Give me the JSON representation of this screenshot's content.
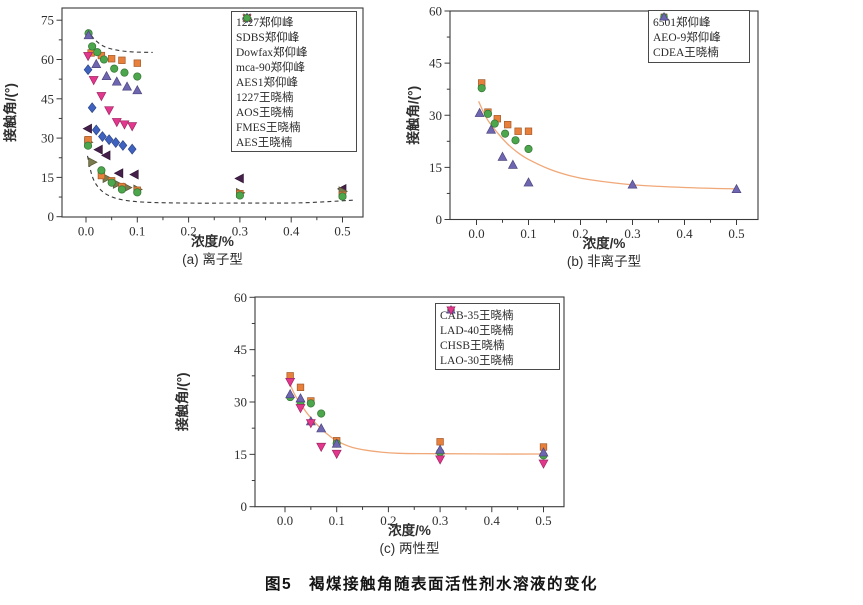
{
  "figure": {
    "caption": "图5　褐煤接触角随表面活性剂水溶液的变化"
  },
  "palette": {
    "orange": "#E8803C",
    "green": "#4CA64C",
    "purple": "#6F66B2",
    "magenta": "#E3368D",
    "blue": "#3F62C0",
    "dark_purple": "#45204A",
    "olive": "#7A7A4C",
    "fit_curve": "#F0A878",
    "dashed_guide": "#3A3A3A",
    "axis": "#3A3A3A",
    "text": "#2F2F2F"
  },
  "chart_data": [
    {
      "id": "a",
      "type": "scatter",
      "subtitle": "(a) 离子型",
      "xlabel": "浓度/%",
      "ylabel": "接触角/(°)",
      "xlim": [
        0,
        0.5
      ],
      "ylim": [
        0,
        75
      ],
      "xticks": [
        [
          0,
          "0.0"
        ],
        [
          0.1,
          "0.1"
        ],
        [
          0.2,
          "0.2"
        ],
        [
          0.3,
          "0.3"
        ],
        [
          0.4,
          "0.4"
        ],
        [
          0.5,
          "0.5"
        ]
      ],
      "yticks": [
        0,
        15,
        30,
        45,
        60,
        75
      ],
      "grid": false,
      "legend_position": "top-right",
      "series": [
        {
          "name": "1227郑仰峰",
          "marker": "square",
          "color": "orange",
          "points": [
            [
              0.01,
              62.5
            ],
            [
              0.03,
              61.5
            ],
            [
              0.05,
              60.3
            ],
            [
              0.07,
              59.7
            ],
            [
              0.1,
              58.6
            ]
          ]
        },
        {
          "name": "SDBS郑仰峰",
          "marker": "circle",
          "color": "green",
          "points": [
            [
              0.005,
              70
            ],
            [
              0.012,
              65
            ],
            [
              0.022,
              62.8
            ],
            [
              0.035,
              60
            ],
            [
              0.055,
              56.5
            ],
            [
              0.075,
              55
            ],
            [
              0.1,
              53.5
            ]
          ]
        },
        {
          "name": "Dowfax郑仰峰",
          "marker": "triangle-up",
          "color": "purple",
          "points": [
            [
              0.005,
              69.2
            ],
            [
              0.02,
              58.2
            ],
            [
              0.04,
              53.6
            ],
            [
              0.06,
              51.5
            ],
            [
              0.08,
              49.6
            ],
            [
              0.1,
              48.2
            ]
          ]
        },
        {
          "name": "mca-90郑仰峰",
          "marker": "triangle-down",
          "color": "magenta",
          "points": [
            [
              0.004,
              61.4
            ],
            [
              0.015,
              52.2
            ],
            [
              0.03,
              46.1
            ],
            [
              0.045,
              40.7
            ],
            [
              0.06,
              36.2
            ],
            [
              0.075,
              35.3
            ],
            [
              0.09,
              34.6
            ]
          ]
        },
        {
          "name": "AES1郑仰峰",
          "marker": "diamond",
          "color": "blue",
          "points": [
            [
              0.004,
              56.1
            ],
            [
              0.012,
              41.6
            ],
            [
              0.02,
              33.1
            ],
            [
              0.032,
              30.6
            ],
            [
              0.045,
              29.4
            ],
            [
              0.058,
              28.3
            ],
            [
              0.072,
              27.2
            ],
            [
              0.09,
              25.8
            ]
          ]
        },
        {
          "name": "1227王晓楠",
          "marker": "triangle-left",
          "color": "dark_purple",
          "points": [
            [
              0.004,
              33.6
            ],
            [
              0.025,
              25.6
            ],
            [
              0.04,
              23.4
            ],
            [
              0.065,
              16.6
            ],
            [
              0.095,
              16.1
            ],
            [
              0.3,
              14.6
            ],
            [
              0.5,
              10.6
            ]
          ]
        },
        {
          "name": "AOS王晓楠",
          "marker": "triangle-right",
          "color": "olive",
          "points": [
            [
              0.004,
              28.4
            ],
            [
              0.012,
              20.8
            ],
            [
              0.04,
              14.7
            ],
            [
              0.06,
              12.5
            ],
            [
              0.08,
              11.1
            ],
            [
              0.1,
              10.4
            ],
            [
              0.3,
              9.1
            ],
            [
              0.5,
              9.7
            ]
          ]
        },
        {
          "name": "FMES王晓楠",
          "marker": "square",
          "color": "orange",
          "points": [
            [
              0.004,
              29.4
            ],
            [
              0.03,
              15.7
            ],
            [
              0.05,
              13.7
            ],
            [
              0.07,
              11.5
            ],
            [
              0.1,
              10.1
            ],
            [
              0.3,
              8.8
            ],
            [
              0.5,
              8.2
            ]
          ]
        },
        {
          "name": "AES王晓楠",
          "marker": "circle",
          "color": "green",
          "points": [
            [
              0.004,
              27.1
            ],
            [
              0.03,
              17.7
            ],
            [
              0.05,
              13
            ],
            [
              0.07,
              10.4
            ],
            [
              0.1,
              9.3
            ],
            [
              0.3,
              8.1
            ],
            [
              0.5,
              7.7
            ]
          ]
        }
      ],
      "curves": [
        {
          "name": "upper-envelope-dashed",
          "style": "dashed",
          "color": "dashed_guide",
          "points": [
            [
              0.003,
              71.5
            ],
            [
              0.015,
              68
            ],
            [
              0.035,
              65
            ],
            [
              0.06,
              63.6
            ],
            [
              0.09,
              62.9
            ],
            [
              0.13,
              62.7
            ]
          ]
        },
        {
          "name": "lower-envelope-dashed",
          "style": "dashed",
          "color": "dashed_guide",
          "points": [
            [
              0.003,
              23.2
            ],
            [
              0.012,
              15.5
            ],
            [
              0.025,
              11
            ],
            [
              0.045,
              8
            ],
            [
              0.075,
              6.3
            ],
            [
              0.12,
              5.5
            ],
            [
              0.2,
              5.2
            ],
            [
              0.3,
              5.2
            ],
            [
              0.42,
              5.3
            ],
            [
              0.52,
              6.3
            ]
          ]
        }
      ]
    },
    {
      "id": "b",
      "type": "scatter",
      "subtitle": "(b) 非离子型",
      "xlabel": "浓度/%",
      "ylabel": "接触角/(°)",
      "xlim": [
        0,
        0.5
      ],
      "ylim": [
        0,
        60
      ],
      "xticks": [
        [
          0,
          "0.0"
        ],
        [
          0.1,
          "0.1"
        ],
        [
          0.2,
          "0.2"
        ],
        [
          0.3,
          "0.3"
        ],
        [
          0.4,
          "0.4"
        ],
        [
          0.5,
          "0.5"
        ]
      ],
      "yticks": [
        0,
        15,
        30,
        45,
        60
      ],
      "grid": false,
      "legend_position": "top-right",
      "series": [
        {
          "name": "6501郑仰峰",
          "marker": "square",
          "color": "orange",
          "points": [
            [
              0.01,
              39.3
            ],
            [
              0.022,
              30.9
            ],
            [
              0.04,
              29
            ],
            [
              0.06,
              27.3
            ],
            [
              0.08,
              25.4
            ],
            [
              0.1,
              25.4
            ]
          ]
        },
        {
          "name": "AEO-9郑仰峰",
          "marker": "circle",
          "color": "green",
          "points": [
            [
              0.01,
              37.8
            ],
            [
              0.022,
              30.4
            ],
            [
              0.035,
              27.6
            ],
            [
              0.055,
              24.7
            ],
            [
              0.075,
              22.8
            ],
            [
              0.1,
              20.3
            ]
          ]
        },
        {
          "name": "CDEA王晓楠",
          "marker": "triangle-up",
          "color": "purple",
          "points": [
            [
              0.006,
              30.6
            ],
            [
              0.028,
              25.8
            ],
            [
              0.05,
              18
            ],
            [
              0.07,
              15.7
            ],
            [
              0.1,
              10.6
            ],
            [
              0.3,
              10
            ],
            [
              0.5,
              8.7
            ]
          ]
        }
      ],
      "curves": [
        {
          "name": "fit-curve",
          "style": "solid",
          "color": "fit_curve",
          "points": [
            [
              0.004,
              34
            ],
            [
              0.02,
              29
            ],
            [
              0.04,
              25
            ],
            [
              0.06,
              21.7
            ],
            [
              0.08,
              19.2
            ],
            [
              0.1,
              17.3
            ],
            [
              0.14,
              14.5
            ],
            [
              0.18,
              12.6
            ],
            [
              0.22,
              11.4
            ],
            [
              0.3,
              10
            ],
            [
              0.4,
              9.2
            ],
            [
              0.5,
              8.8
            ]
          ]
        }
      ]
    },
    {
      "id": "c",
      "type": "scatter",
      "subtitle": "(c) 两性型",
      "xlabel": "浓度/%",
      "ylabel": "接触角/(°)",
      "xlim": [
        0,
        0.5
      ],
      "ylim": [
        0,
        60
      ],
      "xticks": [
        [
          0,
          "0.0"
        ],
        [
          0.1,
          "0.1"
        ],
        [
          0.2,
          "0.2"
        ],
        [
          0.3,
          "0.3"
        ],
        [
          0.4,
          "0.4"
        ],
        [
          0.5,
          "0.5"
        ]
      ],
      "yticks": [
        0,
        15,
        30,
        45,
        60
      ],
      "grid": false,
      "legend_position": "top-right",
      "series": [
        {
          "name": "CAB-35王晓楠",
          "marker": "square",
          "color": "orange",
          "points": [
            [
              0.01,
              37.5
            ],
            [
              0.03,
              34.2
            ],
            [
              0.05,
              30.3
            ],
            [
              0.1,
              18.9
            ],
            [
              0.3,
              18.6
            ],
            [
              0.5,
              17.1
            ]
          ]
        },
        {
          "name": "LAD-40王晓楠",
          "marker": "circle",
          "color": "green",
          "points": [
            [
              0.01,
              31.4
            ],
            [
              0.03,
              30
            ],
            [
              0.05,
              29.6
            ],
            [
              0.07,
              26.7
            ],
            [
              0.1,
              18.1
            ],
            [
              0.3,
              15.6
            ],
            [
              0.5,
              14.7
            ]
          ]
        },
        {
          "name": "CHSB王晓楠",
          "marker": "triangle-up",
          "color": "purple",
          "points": [
            [
              0.01,
              32.2
            ],
            [
              0.03,
              31
            ],
            [
              0.05,
              24.4
            ],
            [
              0.07,
              22.4
            ],
            [
              0.1,
              18
            ],
            [
              0.3,
              16.3
            ],
            [
              0.5,
              15.5
            ]
          ]
        },
        {
          "name": "LAO-30王晓楠",
          "marker": "triangle-down",
          "color": "magenta",
          "points": [
            [
              0.01,
              35.8
            ],
            [
              0.03,
              28.3
            ],
            [
              0.05,
              24
            ],
            [
              0.07,
              17.2
            ],
            [
              0.1,
              15.2
            ],
            [
              0.3,
              13.6
            ],
            [
              0.5,
              12.4
            ]
          ]
        }
      ],
      "curves": [
        {
          "name": "fit-curve",
          "style": "solid",
          "color": "fit_curve",
          "points": [
            [
              0.005,
              36.8
            ],
            [
              0.02,
              31.8
            ],
            [
              0.04,
              27.3
            ],
            [
              0.06,
              23.8
            ],
            [
              0.08,
              21
            ],
            [
              0.1,
              18.9
            ],
            [
              0.13,
              17
            ],
            [
              0.17,
              15.9
            ],
            [
              0.22,
              15.3
            ],
            [
              0.3,
              15.2
            ],
            [
              0.4,
              15.1
            ],
            [
              0.5,
              15.1
            ]
          ]
        }
      ]
    }
  ]
}
